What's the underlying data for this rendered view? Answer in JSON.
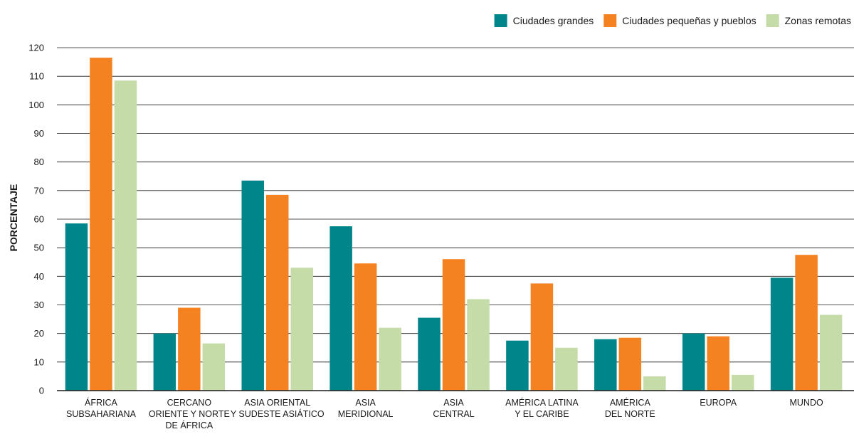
{
  "chart_data": {
    "type": "bar",
    "title": "",
    "xlabel": "",
    "ylabel": "PORCENTAJE",
    "ylim": [
      0,
      120
    ],
    "yticks": [
      0,
      10,
      20,
      30,
      40,
      50,
      60,
      70,
      80,
      90,
      100,
      110,
      120
    ],
    "grid": true,
    "legend_position": "top-right",
    "categories": [
      [
        "ÁFRICA",
        "SUBSAHARIANA"
      ],
      [
        "CERCANO",
        "ORIENTE Y NORTE",
        "DE ÁFRICA"
      ],
      [
        "ASIA ORIENTAL",
        "Y SUDESTE ASIÁTICO"
      ],
      [
        "ASIA",
        "MERIDIONAL"
      ],
      [
        "ASIA",
        "CENTRAL"
      ],
      [
        "AMÉRICA LATINA",
        "Y EL CARIBE"
      ],
      [
        "AMÉRICA",
        "DEL NORTE"
      ],
      [
        "EUROPA"
      ],
      [
        "MUNDO"
      ]
    ],
    "series": [
      {
        "name": "Ciudades grandes",
        "color": "#00868a",
        "values": [
          58.5,
          20,
          73.5,
          57.5,
          25.5,
          17.5,
          18,
          20,
          39.5
        ]
      },
      {
        "name": "Ciudades pequeñas y pueblos",
        "color": "#f58220",
        "values": [
          116.5,
          29,
          68.5,
          44.5,
          46,
          37.5,
          18.5,
          19,
          47.5
        ]
      },
      {
        "name": "Zonas remotas",
        "color": "#c5dba8",
        "values": [
          108.5,
          16.5,
          43,
          22,
          32,
          15,
          5,
          5.5,
          26.5
        ]
      }
    ]
  }
}
